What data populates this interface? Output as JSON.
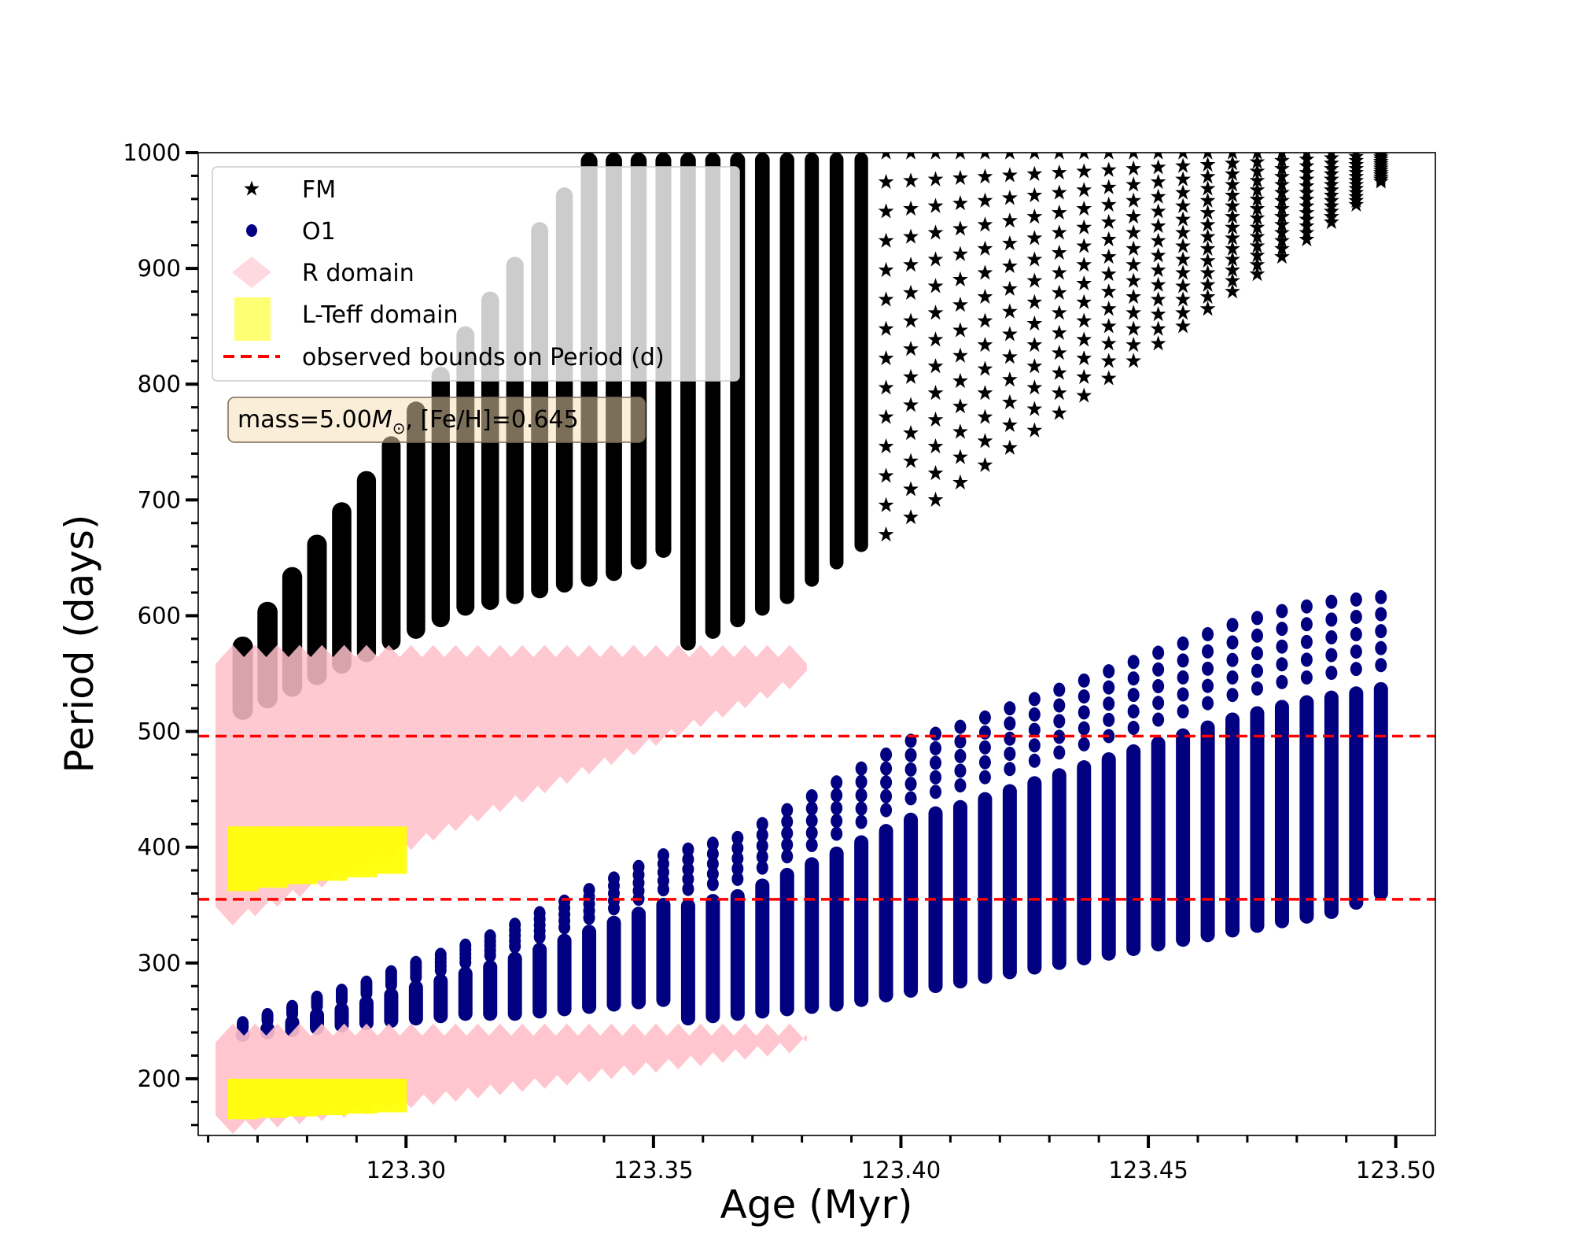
{
  "chart_data": {
    "type": "scatter",
    "title": "",
    "xlabel": "Age (Myr)",
    "ylabel": "Period (days)",
    "xlim": [
      123.258,
      123.508
    ],
    "ylim": [
      151,
      1000
    ],
    "xticks": [
      123.3,
      123.35,
      123.4,
      123.45,
      123.5
    ],
    "xtick_labels": [
      "123.30",
      "123.35",
      "123.40",
      "123.45",
      "123.50"
    ],
    "xminor_step": 0.01,
    "yticks": [
      200,
      300,
      400,
      500,
      600,
      700,
      800,
      900,
      1000
    ],
    "ytick_labels": [
      "200",
      "300",
      "400",
      "500",
      "600",
      "700",
      "800",
      "900",
      "1000"
    ],
    "yminor_step": 20,
    "grid": false,
    "legend_position": "top-left",
    "annotation": {
      "text_prefix": "mass=5.00",
      "text_symbol": "M",
      "text_sub": "⊙",
      "text_suffix": ", [Fe/H]=0.645"
    },
    "hlines": {
      "name": "observed bounds on Period (d)",
      "color": "#ff0000",
      "values": [
        496,
        355
      ]
    },
    "series": [
      {
        "name": "FM",
        "marker": "star",
        "color": "#000000",
        "loops": {
          "ages": [
            123.267,
            123.272,
            123.277,
            123.282,
            123.287,
            123.292,
            123.297,
            123.302,
            123.307,
            123.312,
            123.317,
            123.322,
            123.327,
            123.332,
            123.337,
            123.342,
            123.347,
            123.352,
            123.357,
            123.362,
            123.367,
            123.372,
            123.377,
            123.382,
            123.387,
            123.392,
            123.397,
            123.402,
            123.407,
            123.412,
            123.417,
            123.422,
            123.427,
            123.432,
            123.437,
            123.442,
            123.447,
            123.452,
            123.457,
            123.462,
            123.467,
            123.472,
            123.477,
            123.482,
            123.487,
            123.492,
            123.497
          ],
          "min_period": [
            510,
            520,
            530,
            540,
            550,
            560,
            570,
            580,
            590,
            600,
            605,
            610,
            615,
            620,
            625,
            630,
            640,
            650,
            570,
            580,
            590,
            600,
            610,
            625,
            640,
            655,
            670,
            685,
            700,
            715,
            730,
            745,
            760,
            775,
            790,
            805,
            820,
            835,
            850,
            865,
            880,
            895,
            910,
            925,
            940,
            955,
            975
          ],
          "max_period": [
            582,
            612,
            642,
            670,
            698,
            725,
            755,
            785,
            815,
            850,
            880,
            910,
            940,
            970,
            1000,
            1000,
            1000,
            1000,
            1000,
            1000,
            1000,
            1000,
            1000,
            1000,
            1000,
            1000,
            1000,
            1000,
            1000,
            1000,
            1000,
            1000,
            1000,
            1000,
            1000,
            1000,
            1000,
            1000,
            1000,
            1000,
            1000,
            1000,
            1000,
            1000,
            1000,
            1000,
            1000
          ]
        }
      },
      {
        "name": "O1",
        "marker": "circle",
        "color": "#000080",
        "loops": {
          "ages": [
            123.267,
            123.272,
            123.277,
            123.282,
            123.287,
            123.292,
            123.297,
            123.302,
            123.307,
            123.312,
            123.317,
            123.322,
            123.327,
            123.332,
            123.337,
            123.342,
            123.347,
            123.352,
            123.357,
            123.362,
            123.367,
            123.372,
            123.377,
            123.382,
            123.387,
            123.392,
            123.397,
            123.402,
            123.407,
            123.412,
            123.417,
            123.422,
            123.427,
            123.432,
            123.437,
            123.442,
            123.447,
            123.452,
            123.457,
            123.462,
            123.467,
            123.472,
            123.477,
            123.482,
            123.487,
            123.492,
            123.497
          ],
          "min_period": [
            232,
            234,
            236,
            238,
            240,
            242,
            244,
            246,
            248,
            250,
            250,
            250,
            252,
            254,
            256,
            258,
            260,
            262,
            246,
            248,
            250,
            252,
            254,
            256,
            258,
            262,
            266,
            270,
            274,
            278,
            282,
            286,
            290,
            294,
            298,
            302,
            306,
            310,
            314,
            318,
            322,
            326,
            330,
            334,
            338,
            346,
            354
          ],
          "max_period": [
            248,
            255,
            262,
            270,
            276,
            283,
            292,
            300,
            307,
            315,
            323,
            333,
            343,
            353,
            363,
            373,
            383,
            393,
            398,
            403,
            408,
            420,
            432,
            444,
            456,
            468,
            480,
            492,
            498,
            504,
            512,
            520,
            528,
            536,
            544,
            552,
            560,
            568,
            576,
            584,
            592,
            598,
            604,
            608,
            612,
            614,
            616
          ]
        }
      },
      {
        "name": "R domain",
        "marker": "diamond",
        "color": "#ffc0cb",
        "bands": [
          {
            "age_range": [
              123.265,
              123.378
            ],
            "period_top": 572,
            "period_bottom_start": 335,
            "period_bottom_end": 540
          },
          {
            "age_range": [
              123.265,
              123.378
            ],
            "period_top": 245,
            "period_bottom_start": 155,
            "period_bottom_end": 225
          }
        ]
      },
      {
        "name": "L-Teff domain",
        "marker": "square",
        "color": "#ffff00",
        "bands": [
          {
            "age_range": [
              123.264,
              123.3
            ],
            "period_top": 418,
            "period_bottom": 362
          },
          {
            "age_range": [
              123.264,
              123.3
            ],
            "period_top": 200,
            "period_bottom": 165
          }
        ]
      }
    ],
    "legend_entries": [
      {
        "label": "FM",
        "marker": "star",
        "color": "#000000"
      },
      {
        "label": "O1",
        "marker": "circle",
        "color": "#000080"
      },
      {
        "label": "R domain",
        "marker": "diamond",
        "color": "#ffc0cb"
      },
      {
        "label": "L-Teff domain",
        "marker": "square",
        "color": "#ffff00"
      },
      {
        "label": "observed bounds on Period (d)",
        "marker": "dashed-line",
        "color": "#ff0000"
      }
    ]
  }
}
